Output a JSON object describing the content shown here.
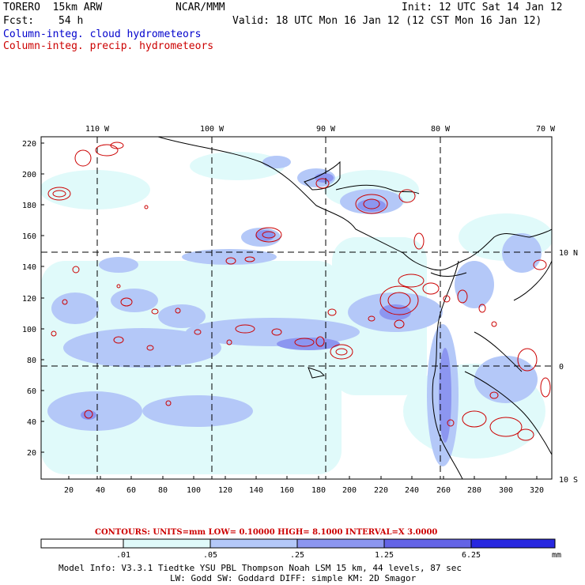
{
  "header": {
    "model": "TORERO  15km ARW",
    "org": "NCAR/MMM",
    "init": "Init: 12 UTC Sat 14 Jan 12",
    "fcst_label": "Fcst:",
    "fcst_value": "54 h",
    "valid": "Valid: 18 UTC Mon 16 Jan 12 (12 CST Mon 16 Jan 12)",
    "legend_blue": "Column-integ. cloud hydrometeors",
    "legend_red": "Column-integ. precip. hydrometeors",
    "legend_blue_color": "#0000cc",
    "legend_red_color": "#cc0000"
  },
  "map": {
    "lon_labels": [
      "110 W",
      "100 W",
      "90 W",
      "80 W",
      "70 W"
    ],
    "lat_labels": [
      "10 N",
      "0",
      "10 S"
    ],
    "y_ticks": [
      "220",
      "200",
      "180",
      "160",
      "140",
      "120",
      "100",
      "80",
      "60",
      "40",
      "20"
    ],
    "x_ticks": [
      "20",
      "40",
      "60",
      "80",
      "100",
      "120",
      "140",
      "160",
      "180",
      "200",
      "220",
      "240",
      "260",
      "280",
      "300",
      "320"
    ]
  },
  "contours_note": {
    "label": "CONTOURS:  UNITS=mm  LOW= 0.10000     HIGH=  8.1000     INTERVAL=X  3.0000",
    "units": "mm",
    "low": 0.1,
    "high": 8.1,
    "interval": 3.0
  },
  "colorbar": {
    "ticks": [
      ".01",
      ".05",
      ".25",
      "1.25",
      "6.25"
    ],
    "unit": "mm",
    "colors": [
      "#ffffff",
      "#e0fafa",
      "#b4c8f8",
      "#8c96f0",
      "#6464e6",
      "#2828e0"
    ]
  },
  "footer": {
    "line1": "Model Info: V3.3.1   Tiedtke YSU PBL  Thompson     Noah LSM  15 km,   44 levels,   87 sec",
    "line2": "LW: Godd SW: Goddard DIFF: simple KM: 2D Smagor"
  }
}
